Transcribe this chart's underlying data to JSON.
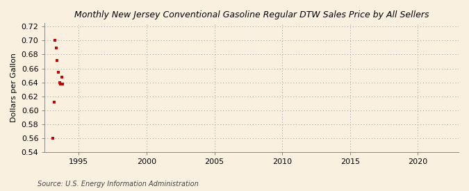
{
  "title": "Monthly New Jersey Conventional Gasoline Regular DTW Sales Price by All Sellers",
  "ylabel": "Dollars per Gallon",
  "source": "Source: U.S. Energy Information Administration",
  "background_color": "#faf0e0",
  "scatter_color": "#cc0000",
  "xlim": [
    1992.5,
    2023
  ],
  "ylim": [
    0.54,
    0.725
  ],
  "yticks": [
    0.54,
    0.56,
    0.58,
    0.6,
    0.62,
    0.64,
    0.66,
    0.68,
    0.7,
    0.72
  ],
  "xticks": [
    1995,
    2000,
    2005,
    2010,
    2015,
    2020
  ],
  "data_x": [
    1993.08,
    1993.17,
    1993.25,
    1993.33,
    1993.42,
    1993.5,
    1993.58,
    1993.67,
    1993.75,
    1993.83
  ],
  "data_y": [
    0.56,
    0.612,
    0.7,
    0.689,
    0.672,
    0.655,
    0.64,
    0.638,
    0.648,
    0.638
  ]
}
